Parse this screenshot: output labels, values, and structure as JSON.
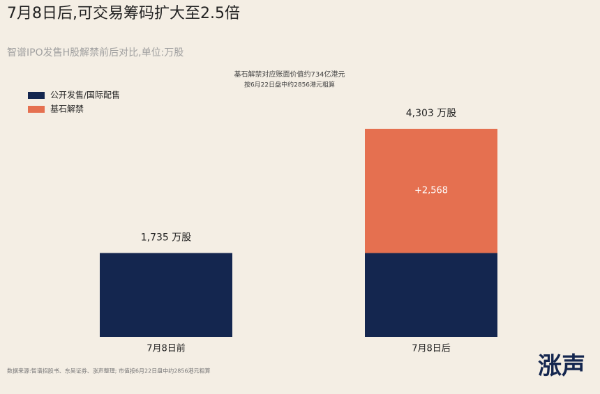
{
  "chart_data": {
    "type": "stacked_bar",
    "title": "7月8日后,可交易筹码扩大至2.5倍",
    "subtitle": "智谱IPO发售H股解禁前后对比,单位:万股",
    "annotations": [
      "基石解禁对应账面价值约734亿港元",
      "按6月22日盘中约2856港元粗算"
    ],
    "source": "数据来源:智谱招股书、东吴证券、涨声整理; 市值按6月22日盘中约2856港元粗算",
    "logo": "涨声",
    "categories": [
      "7月8日前",
      "7月8日后"
    ],
    "series": [
      {
        "name": "公开发售/国际配售",
        "color": "#14264f",
        "values": [
          1735,
          1735
        ]
      },
      {
        "name": "基石解禁",
        "color": "#e57050",
        "values": [
          null,
          2568
        ],
        "value_labels": [
          null,
          "+2,568"
        ]
      }
    ],
    "totals": [
      1735,
      4303
    ],
    "total_labels": [
      "1,735 万股",
      "4,303 万股"
    ],
    "legend": "upper-left"
  }
}
